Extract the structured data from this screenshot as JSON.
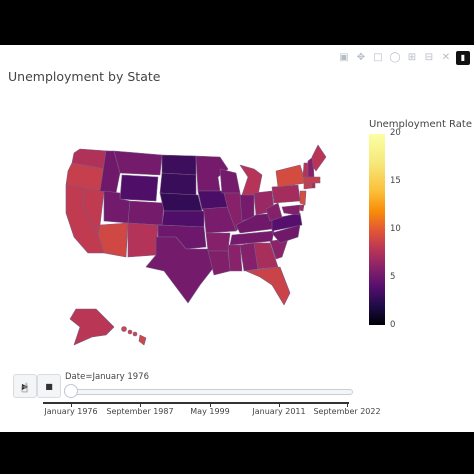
{
  "chart_data": {
    "type": "choropleth",
    "title": "Unemployment by State",
    "colorbar": {
      "title": "Unemployment Rate",
      "range": [
        0,
        20
      ],
      "ticks": [
        "0",
        "5",
        "10",
        "15",
        "20"
      ]
    },
    "colorscale": [
      "#000004",
      "#1f0c48",
      "#550f6d",
      "#88226a",
      "#ba3655",
      "#e35933",
      "#f98e09",
      "#fbbf3a",
      "#f5e97a",
      "#fcffa4"
    ],
    "frame": "Date=January 1976",
    "slider_ticks": [
      "January 1976",
      "September 1987",
      "May 1999",
      "January 2011",
      "September 2022"
    ],
    "states": [
      {
        "state": "WA",
        "value": 8.5
      },
      {
        "state": "OR",
        "value": 9.5
      },
      {
        "state": "CA",
        "value": 9.2
      },
      {
        "state": "NV",
        "value": 9.2
      },
      {
        "state": "ID",
        "value": 5.6
      },
      {
        "state": "MT",
        "value": 5.8
      },
      {
        "state": "WY",
        "value": 4.2
      },
      {
        "state": "UT",
        "value": 5.7
      },
      {
        "state": "AZ",
        "value": 10.0
      },
      {
        "state": "CO",
        "value": 5.8
      },
      {
        "state": "NM",
        "value": 8.6
      },
      {
        "state": "ND",
        "value": 3.4
      },
      {
        "state": "SD",
        "value": 3.3
      },
      {
        "state": "NE",
        "value": 3.0
      },
      {
        "state": "KS",
        "value": 4.2
      },
      {
        "state": "OK",
        "value": 5.5
      },
      {
        "state": "TX",
        "value": 5.8
      },
      {
        "state": "MN",
        "value": 5.9
      },
      {
        "state": "IA",
        "value": 4.0
      },
      {
        "state": "MO",
        "value": 6.0
      },
      {
        "state": "AR",
        "value": 6.5
      },
      {
        "state": "LA",
        "value": 6.3
      },
      {
        "state": "WI",
        "value": 5.8
      },
      {
        "state": "IL",
        "value": 6.6
      },
      {
        "state": "MI",
        "value": 8.7
      },
      {
        "state": "IN",
        "value": 5.9
      },
      {
        "state": "OH",
        "value": 7.4
      },
      {
        "state": "KY",
        "value": 5.6
      },
      {
        "state": "TN",
        "value": 5.9
      },
      {
        "state": "MS",
        "value": 6.7
      },
      {
        "state": "AL",
        "value": 6.5
      },
      {
        "state": "GA",
        "value": 8.1
      },
      {
        "state": "FL",
        "value": 9.7
      },
      {
        "state": "SC",
        "value": 6.8
      },
      {
        "state": "NC",
        "value": 5.6
      },
      {
        "state": "VA",
        "value": 4.5
      },
      {
        "state": "WV",
        "value": 6.5
      },
      {
        "state": "PA",
        "value": 7.9
      },
      {
        "state": "NY",
        "value": 10.3
      },
      {
        "state": "VT",
        "value": 8.6
      },
      {
        "state": "NH",
        "value": 6.5
      },
      {
        "state": "ME",
        "value": 8.8
      },
      {
        "state": "MA",
        "value": 9.5
      },
      {
        "state": "CT",
        "value": 9.4
      },
      {
        "state": "RI",
        "value": 7.8
      },
      {
        "state": "NJ",
        "value": 10.4
      },
      {
        "state": "DE",
        "value": 8.0
      },
      {
        "state": "MD",
        "value": 6.4
      },
      {
        "state": "AK",
        "value": 8.9
      },
      {
        "state": "HI",
        "value": 10.0
      }
    ]
  },
  "modebar": [
    "camera-icon",
    "pan-icon",
    "box-select-icon",
    "lasso-icon",
    "zoom-in-icon",
    "zoom-out-icon",
    "autoscale-icon",
    "plotly-logo-icon"
  ],
  "controls": {
    "play_icon": "play-icon",
    "stop_icon": "stop-icon"
  }
}
